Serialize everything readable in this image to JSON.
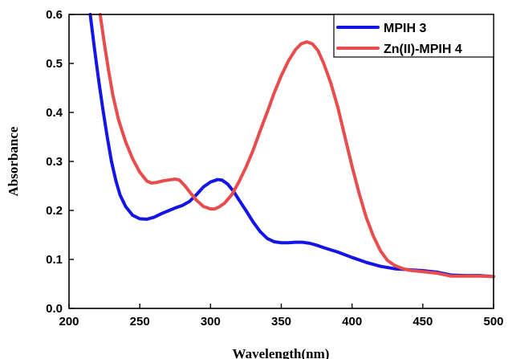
{
  "chart_data": {
    "type": "line",
    "title": "",
    "xlabel": "Wavelength(nm)",
    "ylabel": "Absorbance",
    "xlim": [
      200,
      500
    ],
    "ylim": [
      0.0,
      0.6
    ],
    "x_ticks": [
      200,
      250,
      300,
      350,
      400,
      450,
      500
    ],
    "x_tick_labels": [
      "200",
      "250",
      "300",
      "350",
      "400",
      "450",
      "500"
    ],
    "y_ticks": [
      0.0,
      0.1,
      0.2,
      0.3,
      0.4,
      0.5,
      0.6
    ],
    "y_tick_labels": [
      "0.0",
      "0.1",
      "0.2",
      "0.3",
      "0.4",
      "0.5",
      "0.6"
    ],
    "grid": false,
    "legend_position": "top-right",
    "series": [
      {
        "name": "MPIH 3",
        "color": "#1414e6",
        "x": [
          215,
          218,
          221,
          224,
          227,
          230,
          233,
          236,
          240,
          245,
          250,
          255,
          260,
          265,
          270,
          275,
          280,
          285,
          290,
          295,
          300,
          305,
          308,
          312,
          316,
          320,
          325,
          330,
          335,
          340,
          345,
          350,
          355,
          360,
          365,
          370,
          375,
          380,
          390,
          400,
          410,
          420,
          430,
          440,
          450,
          460,
          470,
          480,
          490,
          500
        ],
        "y": [
          0.6,
          0.53,
          0.465,
          0.405,
          0.35,
          0.3,
          0.262,
          0.232,
          0.208,
          0.19,
          0.183,
          0.182,
          0.186,
          0.193,
          0.199,
          0.205,
          0.21,
          0.218,
          0.232,
          0.248,
          0.258,
          0.263,
          0.262,
          0.254,
          0.24,
          0.222,
          0.2,
          0.177,
          0.157,
          0.143,
          0.136,
          0.134,
          0.134,
          0.135,
          0.135,
          0.133,
          0.129,
          0.124,
          0.115,
          0.104,
          0.094,
          0.086,
          0.081,
          0.079,
          0.077,
          0.074,
          0.068,
          0.067,
          0.067,
          0.065
        ]
      },
      {
        "name": "Zn(II)-MPIH 4",
        "color": "#e84c4c",
        "x": [
          222,
          225,
          228,
          231,
          235,
          240,
          245,
          250,
          255,
          258,
          262,
          266,
          270,
          275,
          278,
          282,
          286,
          290,
          295,
          300,
          303,
          306,
          310,
          315,
          320,
          325,
          330,
          335,
          340,
          345,
          350,
          355,
          360,
          364,
          368,
          372,
          376,
          380,
          385,
          390,
          395,
          400,
          405,
          410,
          415,
          420,
          425,
          430,
          435,
          440,
          450,
          460,
          470,
          480,
          490,
          500
        ],
        "y": [
          0.6,
          0.54,
          0.485,
          0.435,
          0.385,
          0.34,
          0.305,
          0.278,
          0.26,
          0.256,
          0.257,
          0.26,
          0.262,
          0.264,
          0.262,
          0.25,
          0.235,
          0.221,
          0.208,
          0.203,
          0.203,
          0.207,
          0.215,
          0.232,
          0.258,
          0.288,
          0.322,
          0.362,
          0.4,
          0.44,
          0.475,
          0.505,
          0.528,
          0.54,
          0.544,
          0.54,
          0.526,
          0.5,
          0.46,
          0.41,
          0.35,
          0.29,
          0.235,
          0.186,
          0.148,
          0.118,
          0.098,
          0.088,
          0.082,
          0.078,
          0.075,
          0.072,
          0.066,
          0.066,
          0.066,
          0.065
        ]
      }
    ]
  }
}
